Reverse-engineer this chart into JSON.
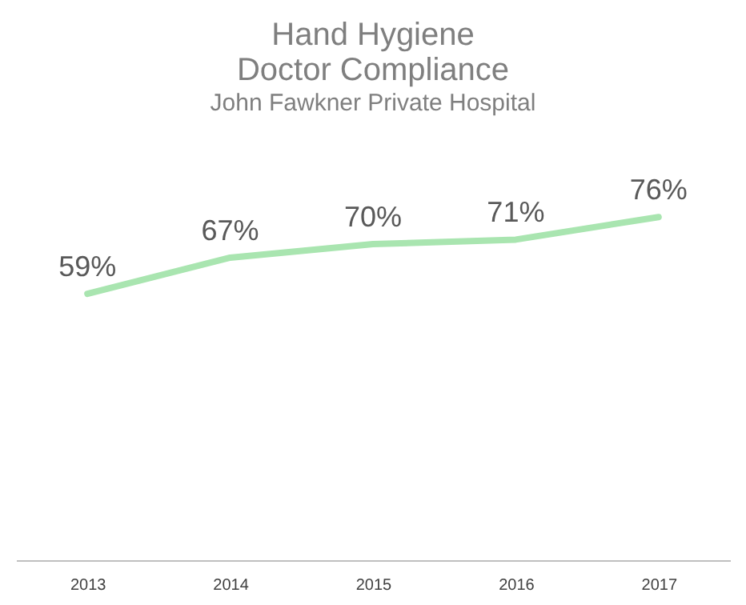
{
  "chart_data": {
    "type": "line",
    "title": "Hand Hygiene\nDoctor Compliance",
    "subtitle": "John Fawkner Private Hospital",
    "categories": [
      "2013",
      "2014",
      "2015",
      "2016",
      "2017"
    ],
    "values": [
      59,
      67,
      70,
      71,
      76
    ],
    "color": "#a9e5b0",
    "data_labels": true,
    "tick_labels": "x",
    "value_labels": [
      "59%",
      "67%",
      "70%",
      "71%",
      "76%"
    ]
  }
}
